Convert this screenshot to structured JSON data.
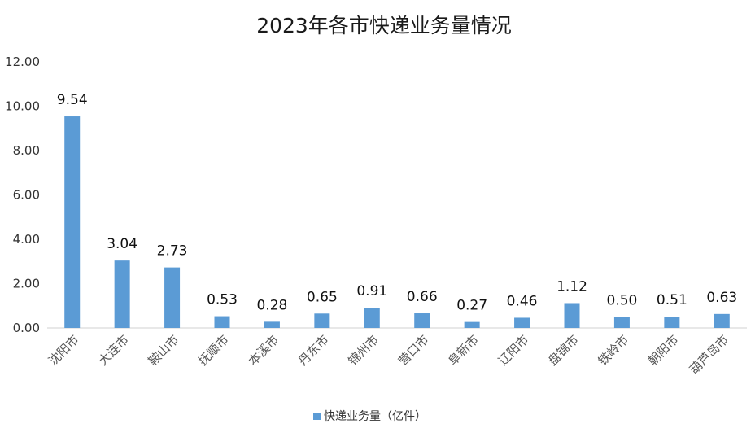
{
  "chart_data": {
    "type": "bar",
    "title": "2023年各市快递业务量情况",
    "categories": [
      "沈阳市",
      "大连市",
      "鞍山市",
      "抚顺市",
      "本溪市",
      "丹东市",
      "锦州市",
      "营口市",
      "阜新市",
      "辽阳市",
      "盘锦市",
      "铁岭市",
      "朝阳市",
      "葫芦岛市"
    ],
    "series": [
      {
        "name": "快递业务量（亿件）",
        "values": [
          9.54,
          3.04,
          2.73,
          0.53,
          0.28,
          0.65,
          0.91,
          0.66,
          0.27,
          0.46,
          1.12,
          0.5,
          0.51,
          0.63
        ],
        "labels": [
          "9.54",
          "3.04",
          "2.73",
          "0.53",
          "0.28",
          "0.65",
          "0.91",
          "0.66",
          "0.27",
          "0.46",
          "1.12",
          "0.50",
          "0.51",
          "0.63"
        ],
        "color": "#5b9bd5"
      }
    ],
    "yticks": [
      "0.00",
      "2.00",
      "4.00",
      "6.00",
      "8.00",
      "10.00",
      "12.00"
    ],
    "ylim": [
      0,
      12
    ],
    "grid": false,
    "legend": "bottom"
  }
}
